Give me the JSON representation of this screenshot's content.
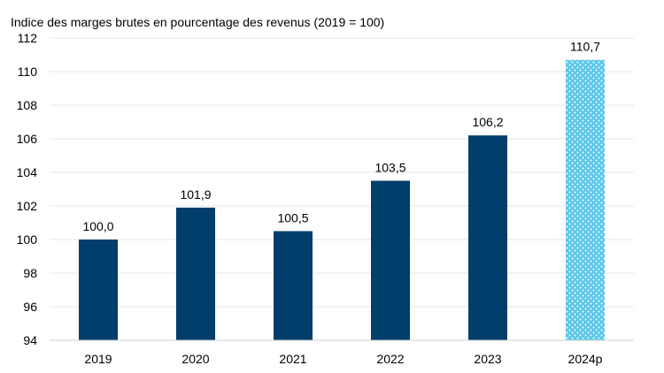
{
  "chart_data": {
    "type": "bar",
    "title": "Indice des marges brutes en pourcentage des revenus (2019 = 100)",
    "xlabel": "",
    "ylabel": "",
    "categories": [
      "2019",
      "2020",
      "2021",
      "2022",
      "2023",
      "2024p"
    ],
    "values": [
      100.0,
      101.9,
      100.5,
      103.5,
      106.2,
      110.7
    ],
    "value_labels": [
      "100,0",
      "101,9",
      "100,5",
      "103,5",
      "106,2",
      "110,7"
    ],
    "ylim": [
      94,
      112
    ],
    "yticks": [
      94,
      96,
      98,
      100,
      102,
      104,
      106,
      108,
      110,
      112
    ],
    "ytick_labels": [
      "94",
      "96",
      "98",
      "100",
      "102",
      "104",
      "106",
      "108",
      "110",
      "112"
    ],
    "grid": true,
    "legend": "none",
    "colors": {
      "actual": "#003e6b",
      "projected": "#5bc8e8",
      "projected_dots": "#ffffff"
    },
    "projected_categories": [
      "2024p"
    ]
  }
}
